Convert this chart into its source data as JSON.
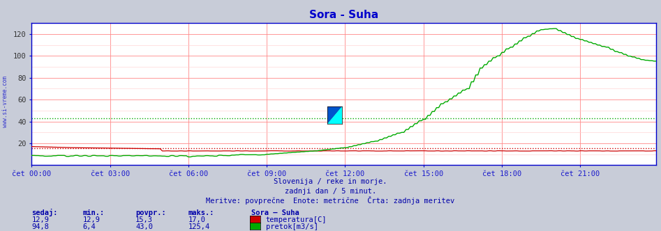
{
  "title": "Sora - Suha",
  "title_color": "#0000cc",
  "bg_color": "#c8ccd8",
  "plot_bg_color": "#ffffff",
  "x_labels": [
    "čet 00:00",
    "čet 03:00",
    "čet 06:00",
    "čet 09:00",
    "čet 12:00",
    "čet 15:00",
    "čet 18:00",
    "čet 21:00"
  ],
  "x_ticks": [
    0,
    36,
    72,
    108,
    144,
    180,
    216,
    252
  ],
  "n_points": 288,
  "ylim": [
    0,
    130
  ],
  "yticks": [
    20,
    40,
    60,
    80,
    100,
    120
  ],
  "grid_color_major": "#ff8888",
  "grid_color_minor": "#ffcccc",
  "temp_color": "#cc0000",
  "flow_color": "#00aa00",
  "watermark_color": "#1a1acc",
  "footer_line1": "Slovenija / reke in morje.",
  "footer_line2": "zadnji dan / 5 minut.",
  "footer_line3": "Meritve: povprečne  Enote: metrične  Črta: zadnja meritev",
  "footer_color": "#0000aa",
  "sidebar_text": "www.si-vreme.com",
  "table_headers": [
    "sedaj:",
    "min.:",
    "povpr.:",
    "maks.:"
  ],
  "table_label": "Sora – Suha",
  "temp_row": [
    "12,9",
    "12,9",
    "15,3",
    "17,0"
  ],
  "flow_row": [
    "94,8",
    "6,4",
    "43,0",
    "125,4"
  ],
  "temp_label": "temperatura[C]",
  "flow_label": "pretok[m3/s]",
  "temp_avg": 15.3,
  "flow_avg": 43.0,
  "temp_min": 12.9,
  "temp_max": 17.0,
  "flow_min": 6.4,
  "flow_max": 125.4,
  "axis_color": "#0000cc",
  "tick_color": "#0000cc"
}
